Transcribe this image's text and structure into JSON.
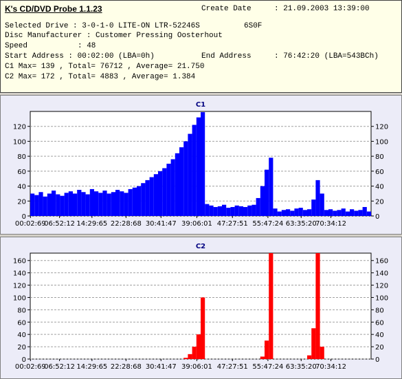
{
  "header": {
    "title": "K's CD/DVD Probe 1.1.23",
    "create_date_label": "Create Date",
    "create_date": ": 21.09.2003 13:39:00",
    "drive": "Selected Drive : 3-0-1-0 LITE-ON LTR-52246S",
    "firmware": "6S0F",
    "manufacturer": "Disc Manufacturer : Customer Pressing Oosterhout",
    "speed_label": "Speed",
    "speed": ": 48",
    "start_address": "Start Address : 00:02:00 (LBA=0h)",
    "end_address_label": "End Address",
    "end_address": ": 76:42:20 (LBA=543BCh)",
    "c1_summary": "C1 Max= 139 , Total= 76712 , Average= 21.750",
    "c2_summary": "C2 Max= 172 , Total= 4883 , Average= 1.384"
  },
  "chart_data": [
    {
      "type": "bar",
      "title": "C1",
      "color": "#0000ff",
      "grid": true,
      "x": [
        0,
        1,
        2,
        3,
        4,
        5,
        6,
        7,
        8,
        9,
        10,
        11,
        12,
        13,
        14,
        15,
        16,
        17,
        18,
        19,
        20,
        21,
        22,
        23,
        24,
        25,
        26,
        27,
        28,
        29,
        30,
        31,
        32,
        33,
        34,
        35,
        36,
        37,
        38,
        39,
        40,
        41,
        42,
        43,
        44,
        45,
        46,
        47,
        48,
        49,
        50,
        51,
        52,
        53,
        54,
        55,
        56,
        57,
        58,
        59,
        60,
        61,
        62,
        63,
        64,
        65,
        66,
        67,
        68,
        69,
        70,
        71,
        72,
        73,
        74,
        75,
        76,
        77,
        78,
        79
      ],
      "values": [
        30,
        28,
        32,
        26,
        30,
        34,
        29,
        27,
        31,
        33,
        30,
        35,
        32,
        29,
        36,
        33,
        31,
        34,
        30,
        32,
        35,
        33,
        31,
        36,
        38,
        40,
        44,
        48,
        52,
        56,
        60,
        64,
        70,
        76,
        84,
        92,
        100,
        110,
        122,
        132,
        139,
        16,
        14,
        12,
        13,
        15,
        11,
        12,
        14,
        13,
        12,
        14,
        15,
        24,
        40,
        62,
        78,
        10,
        6,
        8,
        9,
        7,
        10,
        11,
        8,
        9,
        22,
        48,
        30,
        8,
        9,
        7,
        8,
        10,
        6,
        9,
        7,
        8,
        12,
        6
      ],
      "xlim": [
        0,
        80
      ],
      "xticks": [
        {
          "value": 0.05,
          "label": "00:02:69"
        },
        {
          "value": 6.87,
          "label": "06:52:12"
        },
        {
          "value": 14.49,
          "label": "14:29:65"
        },
        {
          "value": 22.48,
          "label": "22:28:68"
        },
        {
          "value": 30.69,
          "label": "30:41:47"
        },
        {
          "value": 39.1,
          "label": "39:06:01"
        },
        {
          "value": 47.46,
          "label": "47:27:51"
        },
        {
          "value": 55.79,
          "label": "55:47:24"
        },
        {
          "value": 63.59,
          "label": "63:35:20"
        },
        {
          "value": 70.57,
          "label": "70:34:12"
        }
      ],
      "ylim": [
        0,
        140
      ],
      "yticks": [
        0,
        20,
        40,
        60,
        80,
        100,
        120
      ]
    },
    {
      "type": "bar",
      "title": "C2",
      "color": "#ff0000",
      "grid": true,
      "x": [
        0,
        1,
        2,
        3,
        4,
        5,
        6,
        7,
        8,
        9,
        10,
        11,
        12,
        13,
        14,
        15,
        16,
        17,
        18,
        19,
        20,
        21,
        22,
        23,
        24,
        25,
        26,
        27,
        28,
        29,
        30,
        31,
        32,
        33,
        34,
        35,
        36,
        37,
        38,
        39,
        40,
        41,
        42,
        43,
        44,
        45,
        46,
        47,
        48,
        49,
        50,
        51,
        52,
        53,
        54,
        55,
        56,
        57,
        58,
        59,
        60,
        61,
        62,
        63,
        64,
        65,
        66,
        67,
        68,
        69,
        70,
        71,
        72,
        73,
        74,
        75,
        76,
        77,
        78,
        79
      ],
      "values": [
        0,
        0,
        0,
        0,
        0,
        0,
        0,
        0,
        0,
        0,
        0,
        0,
        0,
        0,
        0,
        0,
        0,
        0,
        0,
        0,
        0,
        0,
        0,
        0,
        0,
        0,
        0,
        0,
        0,
        0,
        0,
        0,
        0,
        0,
        0,
        0,
        2,
        8,
        20,
        40,
        100,
        0,
        0,
        0,
        0,
        0,
        0,
        0,
        0,
        0,
        0,
        0,
        0,
        0,
        4,
        30,
        172,
        0,
        0,
        0,
        0,
        0,
        0,
        0,
        0,
        6,
        50,
        172,
        20,
        0,
        0,
        0,
        0,
        0,
        0,
        0,
        0,
        0,
        0,
        0
      ],
      "xlim": [
        0,
        80
      ],
      "xticks": [
        {
          "value": 0.05,
          "label": "00:02:69"
        },
        {
          "value": 6.87,
          "label": "06:52:12"
        },
        {
          "value": 14.49,
          "label": "14:29:65"
        },
        {
          "value": 22.48,
          "label": "22:28:68"
        },
        {
          "value": 30.69,
          "label": "30:41:47"
        },
        {
          "value": 39.1,
          "label": "39:06:01"
        },
        {
          "value": 47.46,
          "label": "47:27:51"
        },
        {
          "value": 55.79,
          "label": "55:47:24"
        },
        {
          "value": 63.59,
          "label": "63:35:20"
        },
        {
          "value": 70.57,
          "label": "70:34:12"
        }
      ],
      "ylim": [
        0,
        172
      ],
      "yticks": [
        0,
        20,
        40,
        60,
        80,
        100,
        120,
        140,
        160
      ]
    }
  ]
}
